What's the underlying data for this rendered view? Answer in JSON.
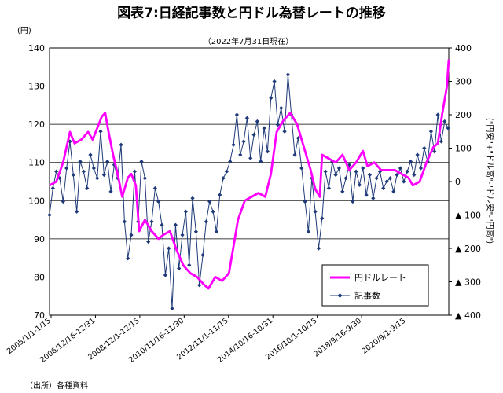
{
  "chart_data": {
    "type": "line",
    "title": "図表7:日経記事数と円ドル為替レートの推移",
    "subtitle": "（2022年7月31日現在）",
    "source": "（出所）各種資料",
    "left_axis": {
      "unit_label": "(円)",
      "min": 70,
      "max": 140,
      "step": 10,
      "ticks": [
        "70",
        "80",
        "90",
        "100",
        "110",
        "120",
        "130",
        "140"
      ]
    },
    "right_axis": {
      "label": "(\"円安\"+\"ドル高\"-\"ドル安\"-\"円高\")",
      "min": -400,
      "max": 400,
      "ticks": [
        "▲ 400",
        "▲ 300",
        "▲ 200",
        "▲ 100",
        "0",
        "100",
        "200",
        "300",
        "400"
      ]
    },
    "x_tick_labels": [
      "2005/1/1-1/15",
      "2006/12/16-12/31",
      "2008/12/1-12/15",
      "2010/11/16-11/30",
      "2012/11/1-11/15",
      "2014/10/16-10/31",
      "2016/10/1-10/15",
      "2018/9/16-9/30",
      "2020/9/1-9/15"
    ],
    "x_range": [
      2005.0,
      2022.58
    ],
    "legend": {
      "placement": "bottom-right",
      "fx_label": "円ドルレート",
      "articles_label": "記事数"
    },
    "colors": {
      "fx": "#ff00ff",
      "articles": "#1f3a78",
      "grid": "#000000"
    },
    "series_fx": {
      "name": "円ドルレート",
      "x": [
        2005.0,
        2005.3,
        2005.6,
        2005.9,
        2006.1,
        2006.4,
        2006.7,
        2006.9,
        2007.1,
        2007.3,
        2007.45,
        2007.6,
        2007.8,
        2008.0,
        2008.2,
        2008.45,
        2008.6,
        2008.8,
        2008.95,
        2009.2,
        2009.5,
        2009.8,
        2010.0,
        2010.3,
        2010.6,
        2010.9,
        2011.2,
        2011.5,
        2011.8,
        2012.0,
        2012.3,
        2012.6,
        2012.9,
        2013.1,
        2013.3,
        2013.6,
        2013.9,
        2014.2,
        2014.5,
        2014.75,
        2015.0,
        2015.3,
        2015.6,
        2015.9,
        2016.1,
        2016.3,
        2016.5,
        2016.7,
        2016.9,
        2017.0,
        2017.3,
        2017.6,
        2017.9,
        2018.2,
        2018.5,
        2018.8,
        2019.0,
        2019.3,
        2019.6,
        2019.9,
        2020.2,
        2020.5,
        2020.8,
        2021.0,
        2021.3,
        2021.6,
        2021.9,
        2022.1,
        2022.3,
        2022.5,
        2022.58
      ],
      "values": [
        104,
        105,
        110,
        118,
        115,
        116,
        118,
        116,
        119,
        122,
        123,
        118,
        112,
        107,
        101,
        106,
        107,
        104,
        92,
        95,
        92,
        90,
        91,
        92,
        87,
        83,
        81,
        80,
        78,
        77,
        80,
        79,
        81,
        88,
        95,
        100,
        101,
        102,
        101,
        107,
        118,
        121,
        123,
        120,
        116,
        112,
        108,
        103,
        101,
        112,
        111,
        110,
        112,
        108,
        110,
        113,
        109,
        110,
        108,
        108,
        108,
        107,
        106,
        104,
        105,
        110,
        114,
        115,
        123,
        130,
        137
      ]
    },
    "series_articles": {
      "name": "記事数",
      "x": [
        2005.0,
        2005.15,
        2005.3,
        2005.45,
        2005.6,
        2005.75,
        2005.9,
        2006.05,
        2006.2,
        2006.35,
        2006.5,
        2006.65,
        2006.8,
        2006.95,
        2007.1,
        2007.25,
        2007.4,
        2007.55,
        2007.7,
        2007.85,
        2008.0,
        2008.15,
        2008.3,
        2008.45,
        2008.6,
        2008.75,
        2008.9,
        2009.05,
        2009.2,
        2009.35,
        2009.5,
        2009.65,
        2009.8,
        2009.95,
        2010.1,
        2010.25,
        2010.4,
        2010.55,
        2010.7,
        2010.85,
        2011.0,
        2011.15,
        2011.3,
        2011.45,
        2011.6,
        2011.75,
        2011.9,
        2012.05,
        2012.2,
        2012.35,
        2012.5,
        2012.65,
        2012.8,
        2012.95,
        2013.1,
        2013.25,
        2013.4,
        2013.55,
        2013.7,
        2013.85,
        2014.0,
        2014.15,
        2014.3,
        2014.45,
        2014.6,
        2014.75,
        2014.9,
        2015.05,
        2015.2,
        2015.35,
        2015.5,
        2015.65,
        2015.8,
        2015.95,
        2016.1,
        2016.25,
        2016.4,
        2016.55,
        2016.7,
        2016.85,
        2017.0,
        2017.15,
        2017.3,
        2017.45,
        2017.6,
        2017.75,
        2017.9,
        2018.05,
        2018.2,
        2018.35,
        2018.5,
        2018.65,
        2018.8,
        2018.95,
        2019.1,
        2019.25,
        2019.4,
        2019.55,
        2019.7,
        2019.85,
        2020.0,
        2020.15,
        2020.3,
        2020.45,
        2020.6,
        2020.75,
        2020.9,
        2021.05,
        2021.2,
        2021.35,
        2021.5,
        2021.65,
        2021.8,
        2021.95,
        2022.1,
        2022.25,
        2022.4,
        2022.55
      ],
      "values": [
        -100,
        -20,
        30,
        10,
        -60,
        40,
        120,
        20,
        -90,
        60,
        30,
        -20,
        80,
        40,
        10,
        150,
        20,
        60,
        -30,
        50,
        10,
        110,
        -120,
        -230,
        -160,
        30,
        -120,
        60,
        10,
        -180,
        -120,
        -20,
        -60,
        -130,
        -280,
        -200,
        -380,
        -130,
        -260,
        -160,
        -90,
        -250,
        -50,
        -150,
        -310,
        -220,
        -120,
        -60,
        -90,
        -150,
        -40,
        10,
        30,
        60,
        110,
        200,
        80,
        120,
        190,
        70,
        140,
        180,
        60,
        160,
        90,
        250,
        300,
        170,
        220,
        150,
        320,
        200,
        80,
        130,
        40,
        -60,
        -150,
        10,
        -90,
        -200,
        -110,
        30,
        -20,
        60,
        20,
        40,
        -30,
        10,
        50,
        -60,
        30,
        -10,
        40,
        -40,
        20,
        -50,
        10,
        30,
        -20,
        0,
        10,
        -30,
        20,
        40,
        0,
        30,
        60,
        20,
        80,
        40,
        100,
        60,
        150,
        90,
        200,
        120,
        180,
        160
      ]
    }
  }
}
